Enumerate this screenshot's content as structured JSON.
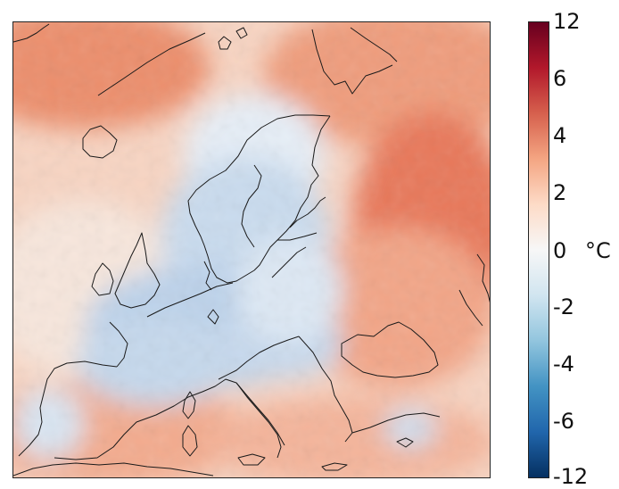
{
  "colorbar": {
    "unit": "°C",
    "ticks": [
      "12",
      "6",
      "4",
      "2",
      "0",
      "-2",
      "-4",
      "-6",
      "-12"
    ],
    "colors": [
      "#053061",
      "#2166ac",
      "#4393c3",
      "#92c5de",
      "#d1e5f0",
      "#f7f7f7",
      "#fddbc7",
      "#f4a582",
      "#d6604d",
      "#b2182b",
      "#67001f"
    ]
  },
  "map": {
    "description_colors": {
      "warm": "#f29574",
      "cool": "#c7d9ec",
      "neutral": "#f6ece6"
    }
  }
}
